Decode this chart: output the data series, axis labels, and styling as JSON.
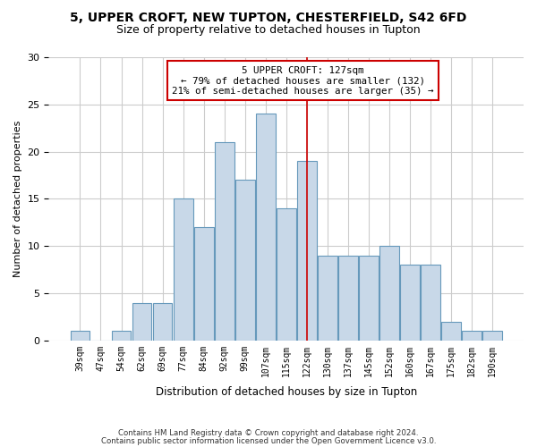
{
  "title1": "5, UPPER CROFT, NEW TUPTON, CHESTERFIELD, S42 6FD",
  "title2": "Size of property relative to detached houses in Tupton",
  "xlabel": "Distribution of detached houses by size in Tupton",
  "ylabel": "Number of detached properties",
  "categories": [
    "39sqm",
    "47sqm",
    "54sqm",
    "62sqm",
    "69sqm",
    "77sqm",
    "84sqm",
    "92sqm",
    "99sqm",
    "107sqm",
    "115sqm",
    "122sqm",
    "130sqm",
    "137sqm",
    "145sqm",
    "152sqm",
    "160sqm",
    "167sqm",
    "175sqm",
    "182sqm",
    "190sqm"
  ],
  "values": [
    1,
    0,
    1,
    4,
    4,
    15,
    12,
    21,
    17,
    24,
    14,
    19,
    9,
    9,
    9,
    10,
    8,
    8,
    2,
    1,
    1
  ],
  "bar_color": "#c8d8e8",
  "bar_edge_color": "#6699bb",
  "ref_idx": 11,
  "reference_line_color": "#cc0000",
  "annotation_text": "5 UPPER CROFT: 127sqm\n← 79% of detached houses are smaller (132)\n21% of semi-detached houses are larger (35) →",
  "annotation_box_color": "#cc0000",
  "grid_color": "#cccccc",
  "background_color": "#ffffff",
  "footer1": "Contains HM Land Registry data © Crown copyright and database right 2024.",
  "footer2": "Contains public sector information licensed under the Open Government Licence v3.0.",
  "ylim": [
    0,
    30
  ],
  "yticks": [
    0,
    5,
    10,
    15,
    20,
    25,
    30
  ]
}
